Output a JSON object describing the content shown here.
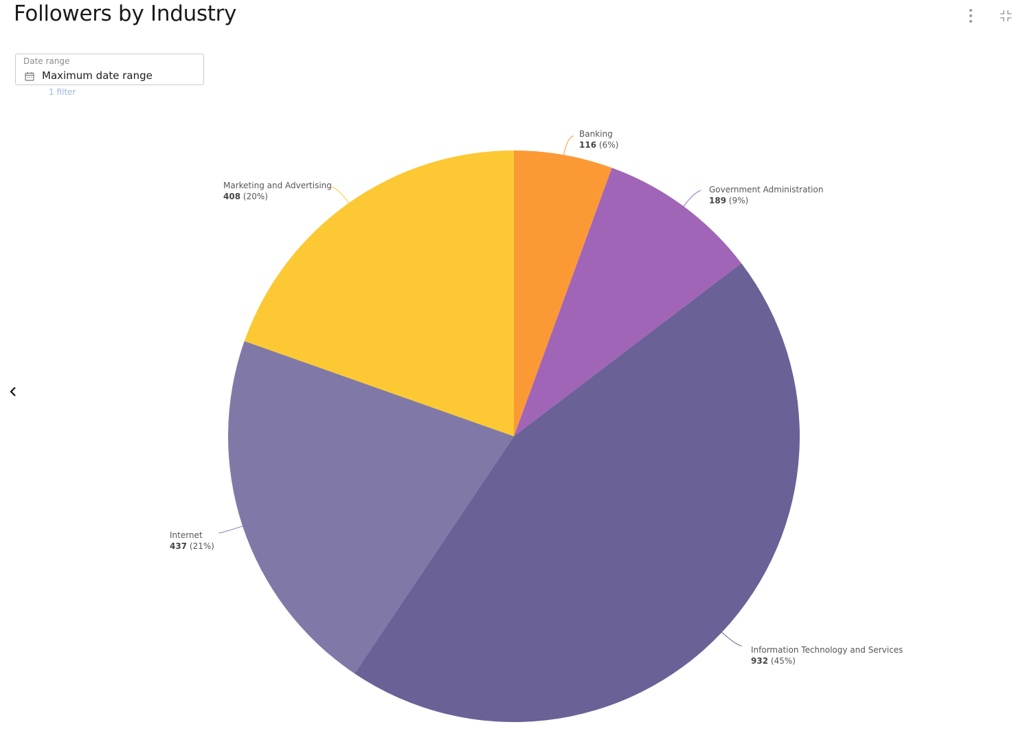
{
  "header": {
    "title": "Followers by Industry",
    "more_icon": "vertical-dots-icon",
    "collapse_icon": "collapse-icon"
  },
  "filter": {
    "label": "Date range",
    "value": "Maximum date range",
    "icon": "calendar-icon",
    "count_text": "1 filter"
  },
  "nav": {
    "back_icon": "chevron-left-icon"
  },
  "labels": {
    "banking": {
      "name": "Banking",
      "value": "116",
      "pct": "(6%)"
    },
    "government": {
      "name": "Government Administration",
      "value": "189",
      "pct": "(9%)"
    },
    "it": {
      "name": "Information Technology and Services",
      "value": "932",
      "pct": "(45%)"
    },
    "internet": {
      "name": "Internet",
      "value": "437",
      "pct": "(21%)"
    },
    "marketing": {
      "name": "Marketing and Advertising",
      "value": "408",
      "pct": "(20%)"
    }
  },
  "chart_data": {
    "type": "pie",
    "title": "Followers by Industry",
    "categories": [
      "Banking",
      "Government Administration",
      "Information Technology and Services",
      "Internet",
      "Marketing and Advertising"
    ],
    "values": [
      116,
      189,
      932,
      437,
      408
    ],
    "percentages": [
      6,
      9,
      45,
      21,
      20
    ],
    "colors": [
      "#fb9a35",
      "#a165b8",
      "#6a6196",
      "#8079a8",
      "#fcc934"
    ],
    "start_angle_deg": 0,
    "direction": "clockwise",
    "legend": "none (inline callout labels)"
  }
}
